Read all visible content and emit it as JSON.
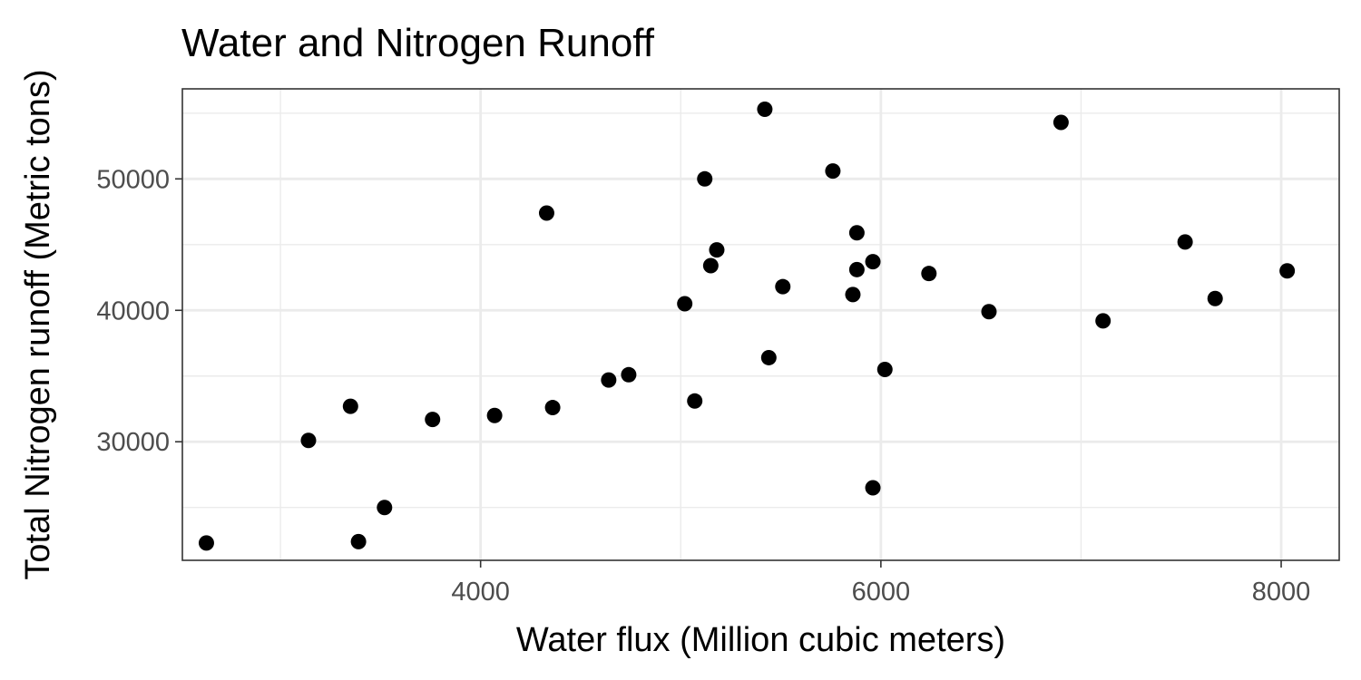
{
  "chart_data": {
    "type": "scatter",
    "title": "Water and Nitrogen Runoff",
    "xlabel": "Water flux (Million cubic meters)",
    "ylabel": "Total Nitrogen runoff (Metric tons)",
    "xlim": [
      2510,
      8290
    ],
    "ylim": [
      20980,
      56850
    ],
    "x_ticks": [
      4000,
      6000,
      8000
    ],
    "x_tick_labels": [
      "4000",
      "6000",
      "8000"
    ],
    "x_minor_ticks": [
      3000,
      5000,
      7000
    ],
    "y_ticks": [
      30000,
      40000,
      50000
    ],
    "y_tick_labels": [
      "30000",
      "40000",
      "50000"
    ],
    "y_minor_ticks": [
      25000,
      35000,
      45000,
      55000
    ],
    "grid": true,
    "legend": "none",
    "point_color": "#000000",
    "panel_border_color": "#333333",
    "grid_color": "#ebebeb",
    "points": [
      {
        "x": 2630,
        "y": 22300
      },
      {
        "x": 3140,
        "y": 30100
      },
      {
        "x": 3350,
        "y": 32700
      },
      {
        "x": 3390,
        "y": 22400
      },
      {
        "x": 3520,
        "y": 25000
      },
      {
        "x": 3760,
        "y": 31700
      },
      {
        "x": 4070,
        "y": 32000
      },
      {
        "x": 4330,
        "y": 47400
      },
      {
        "x": 4360,
        "y": 32600
      },
      {
        "x": 4640,
        "y": 34700
      },
      {
        "x": 4740,
        "y": 35100
      },
      {
        "x": 5020,
        "y": 40500
      },
      {
        "x": 5070,
        "y": 33100
      },
      {
        "x": 5120,
        "y": 50000
      },
      {
        "x": 5150,
        "y": 43400
      },
      {
        "x": 5180,
        "y": 44600
      },
      {
        "x": 5420,
        "y": 55300
      },
      {
        "x": 5440,
        "y": 36400
      },
      {
        "x": 5510,
        "y": 41800
      },
      {
        "x": 5760,
        "y": 50600
      },
      {
        "x": 5860,
        "y": 41200
      },
      {
        "x": 5880,
        "y": 43100
      },
      {
        "x": 5880,
        "y": 45900
      },
      {
        "x": 5960,
        "y": 43700
      },
      {
        "x": 5960,
        "y": 26500
      },
      {
        "x": 6020,
        "y": 35500
      },
      {
        "x": 6240,
        "y": 42800
      },
      {
        "x": 6540,
        "y": 39900
      },
      {
        "x": 6900,
        "y": 54300
      },
      {
        "x": 7110,
        "y": 39200
      },
      {
        "x": 7520,
        "y": 45200
      },
      {
        "x": 7670,
        "y": 40900
      },
      {
        "x": 8030,
        "y": 43000
      }
    ]
  }
}
